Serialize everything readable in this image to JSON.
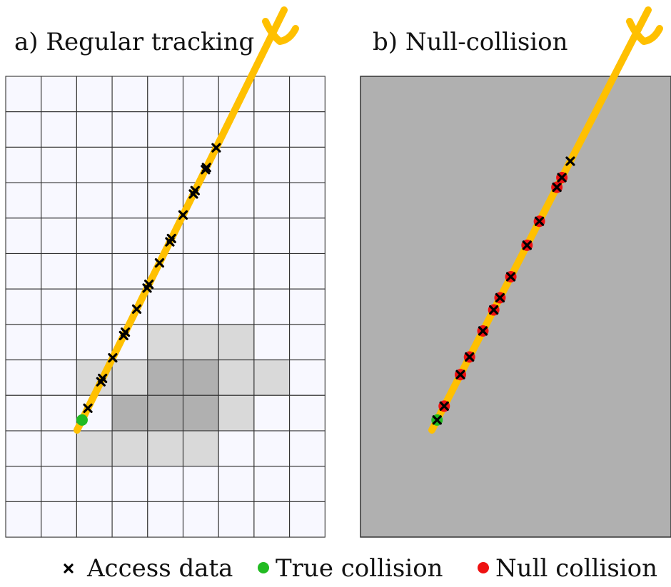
{
  "panels": {
    "a": {
      "title": "a) Regular tracking"
    },
    "b": {
      "title": "b) Null-collision"
    }
  },
  "legend": {
    "access": {
      "label": "Access data",
      "marker": "x-mark"
    },
    "true_collision": {
      "label": "True collision",
      "marker": "dot"
    },
    "null_collision": {
      "label": "Null collision",
      "marker": "dot"
    }
  },
  "colors": {
    "ray": "#ffc000",
    "grid_bg": "#f8f8ff",
    "grid_line": "#333333",
    "medium_light": "#d9d9d9",
    "medium_dark": "#b0b0b0",
    "majorant": "#b0b0b0",
    "true_collision": "#22bb22",
    "null_collision": "#ee1111",
    "access_mark": "#000000"
  },
  "icons": {
    "access": "x-mark-icon",
    "true_collision": "green-dot-icon",
    "null_collision": "red-dot-icon",
    "ray_direction": "forked-arrow-icon"
  },
  "grid": {
    "cols": 9,
    "rows": 13,
    "density": [
      "000000000",
      "000000000",
      "000000000",
      "000000000",
      "000000000",
      "000000000",
      "000000000",
      "000011100",
      "001122110",
      "000222100",
      "001111000",
      "000000000",
      "000000000"
    ]
  },
  "ray": {
    "start_t": 0.0,
    "end_t": 1.0
  },
  "panel_a": {
    "access_points_t": [
      0.052,
      0.115,
      0.123,
      0.172,
      0.225,
      0.233,
      0.288,
      0.338,
      0.347,
      0.398,
      0.448,
      0.456,
      0.512,
      0.562,
      0.57,
      0.62,
      0.625,
      0.672
    ],
    "true_collision_t": 0.024
  },
  "panel_b": {
    "null_collision_t": [
      0.057,
      0.132,
      0.174,
      0.236,
      0.286,
      0.315,
      0.365,
      0.44,
      0.497,
      0.578,
      0.601
    ],
    "true_collision_t": 0.024,
    "end_access_t": 0.64
  }
}
